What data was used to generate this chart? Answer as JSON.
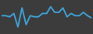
{
  "x": [
    0,
    1,
    2,
    3,
    4,
    5,
    6,
    7,
    8,
    9,
    10,
    11,
    12,
    13,
    14,
    15,
    16,
    17,
    18,
    19,
    20,
    21,
    22
  ],
  "y": [
    22.5,
    22.5,
    22.0,
    23.5,
    17.5,
    26.0,
    18.5,
    22.5,
    22.0,
    22.0,
    23.5,
    23.5,
    26.5,
    24.0,
    24.0,
    26.0,
    22.0,
    23.5,
    22.5,
    22.5,
    24.0,
    22.5,
    21.5
  ],
  "line_color": "#3e9fd4",
  "linewidth": 1.4,
  "background_color": "#3c3c3c",
  "ylim": [
    15.0,
    29.0
  ]
}
